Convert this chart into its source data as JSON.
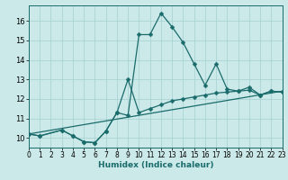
{
  "xlabel": "Humidex (Indice chaleur)",
  "background_color": "#cce9e9",
  "grid_color": "#aad4d4",
  "line_color": "#1a6b6b",
  "xlim": [
    0,
    23
  ],
  "ylim": [
    9.5,
    16.8
  ],
  "yticks": [
    10,
    11,
    12,
    13,
    14,
    15,
    16
  ],
  "xticks": [
    0,
    1,
    2,
    3,
    4,
    5,
    6,
    7,
    8,
    9,
    10,
    11,
    12,
    13,
    14,
    15,
    16,
    17,
    18,
    19,
    20,
    21,
    22,
    23
  ],
  "line1_x": [
    0,
    1,
    3,
    4,
    5,
    6,
    7,
    8,
    9,
    10,
    11,
    12,
    13,
    14,
    15,
    16,
    17,
    18,
    19,
    20,
    21,
    22,
    23
  ],
  "line1_y": [
    10.2,
    10.1,
    10.4,
    10.1,
    9.8,
    9.75,
    10.35,
    11.3,
    11.15,
    15.3,
    15.3,
    16.4,
    15.7,
    14.9,
    13.8,
    12.7,
    13.8,
    12.5,
    12.4,
    12.6,
    12.2,
    12.4,
    12.35
  ],
  "line2_x": [
    0,
    1,
    3,
    4,
    5,
    6,
    7,
    8,
    9,
    10,
    11,
    12,
    13,
    14,
    15,
    16,
    17,
    18,
    19,
    20,
    21,
    22,
    23
  ],
  "line2_y": [
    10.2,
    10.1,
    10.4,
    10.1,
    9.8,
    9.75,
    10.35,
    11.3,
    13.0,
    11.3,
    11.5,
    11.7,
    11.9,
    12.0,
    12.1,
    12.2,
    12.3,
    12.35,
    12.4,
    12.45,
    12.2,
    12.4,
    12.35
  ],
  "line3_x": [
    0,
    23
  ],
  "line3_y": [
    10.2,
    12.4
  ]
}
